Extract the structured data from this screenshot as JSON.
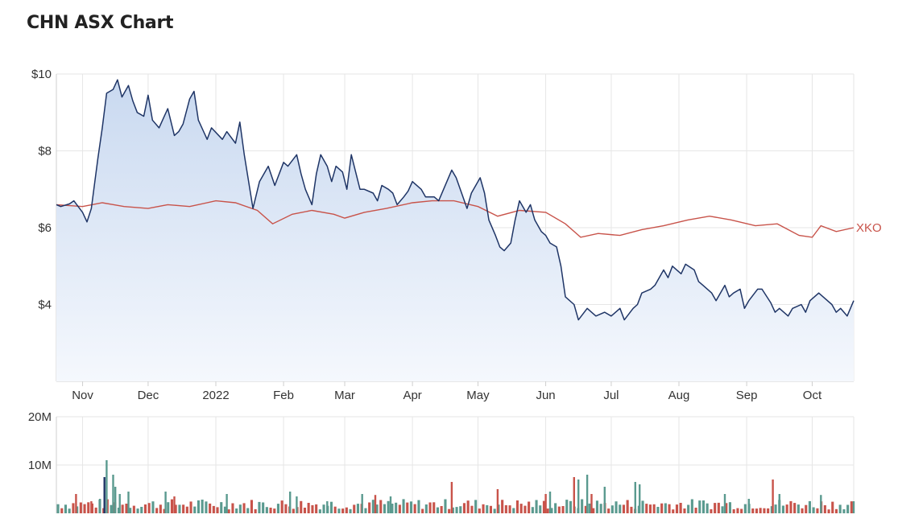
{
  "chart_data": [
    {
      "type": "area",
      "title": "CHN ASX Chart",
      "x_tick_labels": [
        "Nov",
        "Dec",
        "2022",
        "Feb",
        "Mar",
        "Apr",
        "May",
        "Jun",
        "Jul",
        "Aug",
        "Sep",
        "Oct"
      ],
      "x_tick_dates": [
        "2021-11-01",
        "2021-12-01",
        "2022-01-01",
        "2022-02-01",
        "2022-03-01",
        "2022-04-01",
        "2022-05-01",
        "2022-06-01",
        "2022-07-01",
        "2022-08-01",
        "2022-09-01",
        "2022-10-01"
      ],
      "x_range": [
        "2021-10-20",
        "2022-10-20"
      ],
      "y_tick_labels": [
        "$10",
        "$8",
        "$6",
        "$4"
      ],
      "y_ticks": [
        10,
        8,
        6,
        4
      ],
      "ylim": [
        2,
        10
      ],
      "grid": true,
      "series": [
        {
          "name": "",
          "color": "#1f3566",
          "fill_top": "#c9d9f0",
          "fill_bottom": "#f5f8fd",
          "points": [
            [
              "2021-10-20",
              6.6
            ],
            [
              "2021-10-22",
              6.55
            ],
            [
              "2021-10-26",
              6.62
            ],
            [
              "2021-10-28",
              6.7
            ],
            [
              "2021-11-01",
              6.4
            ],
            [
              "2021-11-03",
              6.15
            ],
            [
              "2021-11-05",
              6.5
            ],
            [
              "2021-11-08",
              7.8
            ],
            [
              "2021-11-10",
              8.6
            ],
            [
              "2021-11-12",
              9.5
            ],
            [
              "2021-11-15",
              9.6
            ],
            [
              "2021-11-17",
              9.85
            ],
            [
              "2021-11-19",
              9.4
            ],
            [
              "2021-11-22",
              9.7
            ],
            [
              "2021-11-24",
              9.3
            ],
            [
              "2021-11-26",
              9.0
            ],
            [
              "2021-11-29",
              8.9
            ],
            [
              "2021-12-01",
              9.45
            ],
            [
              "2021-12-03",
              8.8
            ],
            [
              "2021-12-06",
              8.6
            ],
            [
              "2021-12-08",
              8.85
            ],
            [
              "2021-12-10",
              9.1
            ],
            [
              "2021-12-13",
              8.4
            ],
            [
              "2021-12-15",
              8.5
            ],
            [
              "2021-12-17",
              8.7
            ],
            [
              "2021-12-20",
              9.35
            ],
            [
              "2021-12-22",
              9.55
            ],
            [
              "2021-12-24",
              8.8
            ],
            [
              "2021-12-28",
              8.3
            ],
            [
              "2021-12-30",
              8.6
            ],
            [
              "2022-01-04",
              8.3
            ],
            [
              "2022-01-06",
              8.5
            ],
            [
              "2022-01-10",
              8.2
            ],
            [
              "2022-01-12",
              8.75
            ],
            [
              "2022-01-14",
              7.9
            ],
            [
              "2022-01-18",
              6.5
            ],
            [
              "2022-01-21",
              7.2
            ],
            [
              "2022-01-25",
              7.6
            ],
            [
              "2022-01-28",
              7.1
            ],
            [
              "2022-02-01",
              7.7
            ],
            [
              "2022-02-03",
              7.6
            ],
            [
              "2022-02-07",
              7.9
            ],
            [
              "2022-02-09",
              7.4
            ],
            [
              "2022-02-11",
              7.0
            ],
            [
              "2022-02-14",
              6.6
            ],
            [
              "2022-02-16",
              7.4
            ],
            [
              "2022-02-18",
              7.9
            ],
            [
              "2022-02-21",
              7.6
            ],
            [
              "2022-02-23",
              7.2
            ],
            [
              "2022-02-25",
              7.6
            ],
            [
              "2022-02-28",
              7.45
            ],
            [
              "2022-03-02",
              7.0
            ],
            [
              "2022-03-04",
              7.9
            ],
            [
              "2022-03-08",
              7.0
            ],
            [
              "2022-03-10",
              7.0
            ],
            [
              "2022-03-14",
              6.9
            ],
            [
              "2022-03-16",
              6.7
            ],
            [
              "2022-03-18",
              7.1
            ],
            [
              "2022-03-21",
              7.0
            ],
            [
              "2022-03-23",
              6.9
            ],
            [
              "2022-03-25",
              6.6
            ],
            [
              "2022-03-28",
              6.8
            ],
            [
              "2022-03-30",
              6.95
            ],
            [
              "2022-04-01",
              7.2
            ],
            [
              "2022-04-05",
              7.0
            ],
            [
              "2022-04-07",
              6.8
            ],
            [
              "2022-04-11",
              6.8
            ],
            [
              "2022-04-13",
              6.7
            ],
            [
              "2022-04-19",
              7.5
            ],
            [
              "2022-04-21",
              7.3
            ],
            [
              "2022-04-26",
              6.5
            ],
            [
              "2022-04-28",
              6.9
            ],
            [
              "2022-05-02",
              7.3
            ],
            [
              "2022-05-04",
              6.9
            ],
            [
              "2022-05-06",
              6.2
            ],
            [
              "2022-05-09",
              5.8
            ],
            [
              "2022-05-11",
              5.5
            ],
            [
              "2022-05-13",
              5.4
            ],
            [
              "2022-05-16",
              5.6
            ],
            [
              "2022-05-18",
              6.2
            ],
            [
              "2022-05-20",
              6.7
            ],
            [
              "2022-05-23",
              6.4
            ],
            [
              "2022-05-25",
              6.6
            ],
            [
              "2022-05-27",
              6.2
            ],
            [
              "2022-05-30",
              5.9
            ],
            [
              "2022-06-01",
              5.8
            ],
            [
              "2022-06-03",
              5.6
            ],
            [
              "2022-06-06",
              5.5
            ],
            [
              "2022-06-08",
              5.0
            ],
            [
              "2022-06-10",
              4.2
            ],
            [
              "2022-06-14",
              4.0
            ],
            [
              "2022-06-16",
              3.6
            ],
            [
              "2022-06-20",
              3.9
            ],
            [
              "2022-06-22",
              3.8
            ],
            [
              "2022-06-24",
              3.7
            ],
            [
              "2022-06-28",
              3.8
            ],
            [
              "2022-07-01",
              3.7
            ],
            [
              "2022-07-05",
              3.9
            ],
            [
              "2022-07-07",
              3.6
            ],
            [
              "2022-07-11",
              3.9
            ],
            [
              "2022-07-13",
              4.0
            ],
            [
              "2022-07-15",
              4.3
            ],
            [
              "2022-07-19",
              4.4
            ],
            [
              "2022-07-21",
              4.5
            ],
            [
              "2022-07-25",
              4.9
            ],
            [
              "2022-07-27",
              4.7
            ],
            [
              "2022-07-29",
              5.0
            ],
            [
              "2022-08-02",
              4.8
            ],
            [
              "2022-08-04",
              5.05
            ],
            [
              "2022-08-08",
              4.9
            ],
            [
              "2022-08-10",
              4.6
            ],
            [
              "2022-08-12",
              4.5
            ],
            [
              "2022-08-16",
              4.3
            ],
            [
              "2022-08-18",
              4.1
            ],
            [
              "2022-08-22",
              4.5
            ],
            [
              "2022-08-24",
              4.2
            ],
            [
              "2022-08-26",
              4.3
            ],
            [
              "2022-08-29",
              4.4
            ],
            [
              "2022-08-31",
              3.9
            ],
            [
              "2022-09-02",
              4.1
            ],
            [
              "2022-09-06",
              4.4
            ],
            [
              "2022-09-08",
              4.4
            ],
            [
              "2022-09-12",
              4.05
            ],
            [
              "2022-09-14",
              3.8
            ],
            [
              "2022-09-16",
              3.9
            ],
            [
              "2022-09-20",
              3.7
            ],
            [
              "2022-09-22",
              3.9
            ],
            [
              "2022-09-26",
              4.0
            ],
            [
              "2022-09-28",
              3.8
            ],
            [
              "2022-09-30",
              4.1
            ],
            [
              "2022-10-04",
              4.3
            ],
            [
              "2022-10-06",
              4.2
            ],
            [
              "2022-10-10",
              4.0
            ],
            [
              "2022-10-12",
              3.8
            ],
            [
              "2022-10-14",
              3.9
            ],
            [
              "2022-10-17",
              3.7
            ],
            [
              "2022-10-20",
              4.1
            ]
          ]
        },
        {
          "name": "XKO",
          "color": "#c8534a",
          "points": [
            [
              "2021-10-20",
              6.6
            ],
            [
              "2021-11-01",
              6.55
            ],
            [
              "2021-11-10",
              6.65
            ],
            [
              "2021-11-20",
              6.55
            ],
            [
              "2021-12-01",
              6.5
            ],
            [
              "2021-12-10",
              6.6
            ],
            [
              "2021-12-20",
              6.55
            ],
            [
              "2022-01-01",
              6.7
            ],
            [
              "2022-01-10",
              6.65
            ],
            [
              "2022-01-20",
              6.45
            ],
            [
              "2022-01-27",
              6.1
            ],
            [
              "2022-02-05",
              6.35
            ],
            [
              "2022-02-14",
              6.45
            ],
            [
              "2022-02-24",
              6.35
            ],
            [
              "2022-03-01",
              6.25
            ],
            [
              "2022-03-10",
              6.4
            ],
            [
              "2022-03-20",
              6.5
            ],
            [
              "2022-04-01",
              6.65
            ],
            [
              "2022-04-10",
              6.7
            ],
            [
              "2022-04-20",
              6.7
            ],
            [
              "2022-05-01",
              6.55
            ],
            [
              "2022-05-10",
              6.3
            ],
            [
              "2022-05-20",
              6.45
            ],
            [
              "2022-06-01",
              6.4
            ],
            [
              "2022-06-10",
              6.1
            ],
            [
              "2022-06-17",
              5.75
            ],
            [
              "2022-06-25",
              5.85
            ],
            [
              "2022-07-05",
              5.8
            ],
            [
              "2022-07-15",
              5.95
            ],
            [
              "2022-07-25",
              6.05
            ],
            [
              "2022-08-05",
              6.2
            ],
            [
              "2022-08-15",
              6.3
            ],
            [
              "2022-08-25",
              6.2
            ],
            [
              "2022-09-05",
              6.05
            ],
            [
              "2022-09-15",
              6.1
            ],
            [
              "2022-09-25",
              5.8
            ],
            [
              "2022-10-01",
              5.75
            ],
            [
              "2022-10-05",
              6.05
            ],
            [
              "2022-10-12",
              5.9
            ],
            [
              "2022-10-20",
              6.0
            ]
          ]
        }
      ]
    },
    {
      "type": "bar",
      "title": "",
      "y_tick_labels": [
        "20M",
        "10M"
      ],
      "y_ticks": [
        20000000,
        10000000
      ],
      "ylim": [
        0,
        20000000
      ],
      "grid": true,
      "series": [
        {
          "name": "",
          "up_color": "#5a9a8f",
          "down_color": "#c8534a",
          "highlight_color": "#1f3566",
          "bars": [
            [
              "2021-11-11",
              7500000,
              "highlight"
            ],
            [
              "2021-11-12",
              11000000,
              "up"
            ],
            [
              "2021-11-15",
              8000000,
              "up"
            ],
            [
              "2021-11-16",
              5500000,
              "up"
            ],
            [
              "2021-11-18",
              4000000,
              "up"
            ],
            [
              "2021-11-22",
              4500000,
              "up"
            ],
            [
              "2021-11-09",
              3000000,
              "up"
            ],
            [
              "2021-11-05",
              2500000,
              "down"
            ],
            [
              "2021-10-29",
              4000000,
              "down"
            ],
            [
              "2021-12-09",
              4500000,
              "up"
            ],
            [
              "2021-12-13",
              3500000,
              "down"
            ],
            [
              "2022-01-06",
              4000000,
              "up"
            ],
            [
              "2022-02-04",
              4500000,
              "up"
            ],
            [
              "2022-02-07",
              3500000,
              "up"
            ],
            [
              "2022-02-21",
              2500000,
              "up"
            ],
            [
              "2022-03-09",
              4000000,
              "up"
            ],
            [
              "2022-03-15",
              3800000,
              "down"
            ],
            [
              "2022-03-22",
              3500000,
              "up"
            ],
            [
              "2022-04-19",
              6500000,
              "down"
            ],
            [
              "2022-05-10",
              5000000,
              "down"
            ],
            [
              "2022-06-01",
              4000000,
              "down"
            ],
            [
              "2022-06-03",
              4500000,
              "up"
            ],
            [
              "2022-06-14",
              7500000,
              "down"
            ],
            [
              "2022-06-16",
              7000000,
              "up"
            ],
            [
              "2022-06-20",
              8000000,
              "up"
            ],
            [
              "2022-06-22",
              4000000,
              "down"
            ],
            [
              "2022-06-28",
              5500000,
              "up"
            ],
            [
              "2022-07-12",
              6500000,
              "up"
            ],
            [
              "2022-07-14",
              6000000,
              "up"
            ],
            [
              "2022-08-22",
              4000000,
              "up"
            ],
            [
              "2022-09-02",
              3000000,
              "up"
            ],
            [
              "2022-09-13",
              7000000,
              "down"
            ],
            [
              "2022-09-16",
              4000000,
              "up"
            ],
            [
              "2022-10-05",
              3800000,
              "up"
            ],
            [
              "2022-10-20",
              2500000,
              "up"
            ]
          ],
          "baseline_bars": 210
        }
      ]
    }
  ]
}
